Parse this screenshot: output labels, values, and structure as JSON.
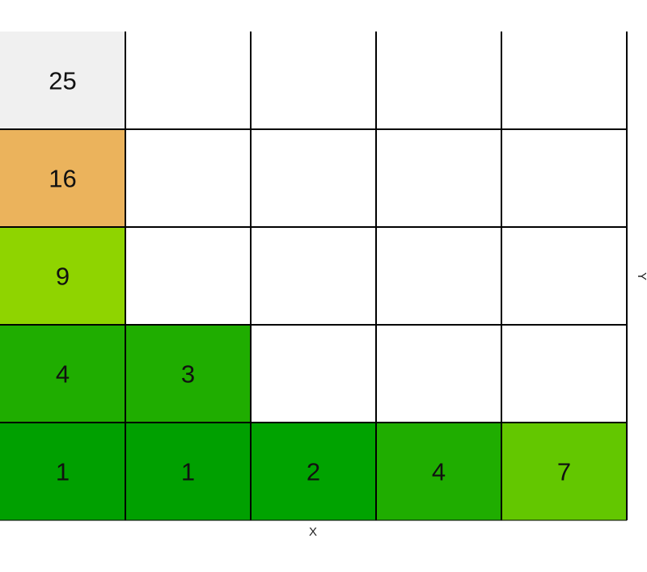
{
  "chart_data": {
    "type": "heatmap",
    "xlabel": "X",
    "ylabel": "Y",
    "grid": true,
    "rows": [
      {
        "row": 1,
        "cells": [
          {
            "col": 1,
            "value": 1,
            "color": "#00a000"
          },
          {
            "col": 2,
            "value": 1,
            "color": "#00a000"
          },
          {
            "col": 3,
            "value": 2,
            "color": "#00a300"
          },
          {
            "col": 4,
            "value": 4,
            "color": "#1fad00"
          },
          {
            "col": 5,
            "value": 7,
            "color": "#63c700"
          }
        ]
      },
      {
        "row": 2,
        "cells": [
          {
            "col": 1,
            "value": 4,
            "color": "#1fad00"
          },
          {
            "col": 2,
            "value": 3,
            "color": "#1fad00"
          }
        ]
      },
      {
        "row": 3,
        "cells": [
          {
            "col": 1,
            "value": 9,
            "color": "#8fd400"
          }
        ]
      },
      {
        "row": 4,
        "cells": [
          {
            "col": 1,
            "value": 16,
            "color": "#ebb35c"
          }
        ]
      },
      {
        "row": 5,
        "cells": [
          {
            "col": 1,
            "value": 25,
            "color": "#f0f0f0"
          }
        ]
      }
    ],
    "n_cols": 5,
    "n_rows": 5
  }
}
